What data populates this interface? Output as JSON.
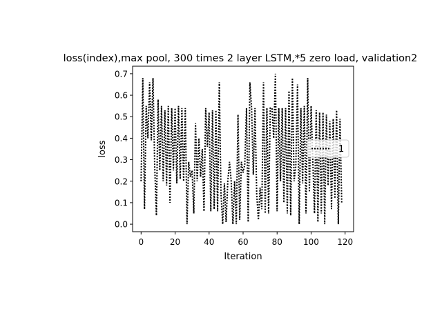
{
  "chart_data": {
    "type": "line",
    "title": "loss(index),max pool, 300 times 2 layer LSTM,*5 zero load, validation2",
    "xlabel": "Iteration",
    "ylabel": "loss",
    "xlim": [
      -5,
      125
    ],
    "ylim": [
      -0.035,
      0.735
    ],
    "xticks": [
      0,
      20,
      40,
      60,
      80,
      100,
      120
    ],
    "yticks": [
      0.0,
      0.1,
      0.2,
      0.3,
      0.4,
      0.5,
      0.6,
      0.7
    ],
    "xtick_labels": [
      "0",
      "20",
      "40",
      "60",
      "80",
      "100",
      "120"
    ],
    "ytick_labels": [
      "0.0",
      "0.1",
      "0.2",
      "0.3",
      "0.4",
      "0.5",
      "0.6",
      "0.7"
    ],
    "grid": false,
    "legend_position": "center-right",
    "series": [
      {
        "name": "1",
        "color": "#000000",
        "linestyle": "dotted",
        "x": [
          0,
          1,
          2,
          3,
          4,
          5,
          6,
          7,
          8,
          9,
          10,
          11,
          12,
          13,
          14,
          15,
          16,
          17,
          18,
          19,
          20,
          21,
          22,
          23,
          24,
          25,
          26,
          27,
          28,
          29,
          30,
          31,
          32,
          33,
          34,
          35,
          36,
          37,
          38,
          39,
          40,
          41,
          42,
          43,
          44,
          45,
          46,
          47,
          48,
          49,
          50,
          51,
          52,
          53,
          54,
          55,
          56,
          57,
          58,
          59,
          60,
          61,
          62,
          63,
          64,
          65,
          66,
          67,
          68,
          69,
          70,
          71,
          72,
          73,
          74,
          75,
          76,
          77,
          78,
          79,
          80,
          81,
          82,
          83,
          84,
          85,
          86,
          87,
          88,
          89,
          90,
          91,
          92,
          93,
          94,
          95,
          96,
          97,
          98,
          99,
          100,
          101,
          102,
          103,
          104,
          105,
          106,
          107,
          108,
          109,
          110,
          111,
          112,
          113,
          114,
          115,
          116,
          117,
          118
        ],
        "values": [
          0.2,
          0.68,
          0.07,
          0.55,
          0.4,
          0.66,
          0.39,
          0.68,
          0.27,
          0.04,
          0.58,
          0.25,
          0.55,
          0.2,
          0.53,
          0.18,
          0.55,
          0.1,
          0.54,
          0.25,
          0.54,
          0.19,
          0.55,
          0.21,
          0.54,
          0.2,
          0.54,
          0.0,
          0.29,
          0.22,
          0.25,
          0.05,
          0.47,
          0.2,
          0.4,
          0.22,
          0.35,
          0.06,
          0.54,
          0.36,
          0.52,
          0.06,
          0.53,
          0.07,
          0.53,
          0.06,
          0.66,
          0.14,
          0.0,
          0.19,
          0.01,
          0.2,
          0.29,
          0.2,
          0.0,
          0.2,
          0.0,
          0.51,
          0.02,
          0.29,
          0.24,
          0.28,
          0.54,
          0.01,
          0.66,
          0.54,
          0.23,
          0.54,
          0.14,
          0.02,
          0.17,
          0.07,
          0.66,
          0.05,
          0.54,
          0.05,
          0.54,
          0.54,
          0.4,
          0.7,
          0.06,
          0.54,
          0.2,
          0.54,
          0.1,
          0.54,
          0.05,
          0.62,
          0.04,
          0.68,
          0.2,
          0.27,
          0.65,
          0.0,
          0.54,
          0.19,
          0.55,
          0.05,
          0.68,
          0.15,
          0.55,
          0.3,
          0.05,
          0.53,
          0.01,
          0.52,
          0.05,
          0.52,
          0.0,
          0.51,
          0.18,
          0.48,
          0.07,
          0.49,
          0.12,
          0.53,
          0.0,
          0.49,
          0.1
        ]
      }
    ]
  }
}
